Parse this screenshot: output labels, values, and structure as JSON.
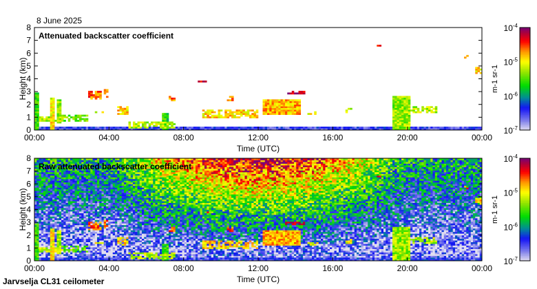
{
  "chart_data": [
    {
      "type": "heatmap",
      "date": "8 June 2025",
      "title": "Attenuated backscatter coefficient",
      "xlabel": "Time (UTC)",
      "ylabel": "Height (km)",
      "xlim_hours": [
        0,
        24
      ],
      "ylim_km": [
        0,
        8
      ],
      "xticks": [
        "00:00",
        "04:00",
        "08:00",
        "12:00",
        "16:00",
        "20:00",
        "00:00"
      ],
      "yticks": [
        "0",
        "1",
        "2",
        "3",
        "4",
        "5",
        "6",
        "7",
        "8"
      ],
      "colorbar": {
        "label": "m-1 sr-1",
        "scale": "log",
        "range_log10": [
          -7,
          -4
        ],
        "ticks": [
          {
            "base": "10",
            "exp": "-7"
          },
          {
            "base": "10",
            "exp": "-6"
          },
          {
            "base": "10",
            "exp": "-5"
          },
          {
            "base": "10",
            "exp": "-4"
          }
        ]
      },
      "features": [
        {
          "t0": 0.0,
          "t1": 0.3,
          "h0": 0.0,
          "h1": 2.9,
          "log10": -5.6
        },
        {
          "t0": 0.3,
          "t1": 1.5,
          "h0": 0.7,
          "h1": 1.0,
          "log10": -5.2
        },
        {
          "t0": 0.8,
          "t1": 1.1,
          "h0": 0.0,
          "h1": 2.5,
          "log10": -5.0
        },
        {
          "t0": 1.2,
          "t1": 1.4,
          "h0": 0.6,
          "h1": 2.4,
          "log10": -5.3
        },
        {
          "t0": 1.5,
          "t1": 2.9,
          "h0": 0.7,
          "h1": 1.2,
          "log10": -5.4
        },
        {
          "t0": 2.9,
          "t1": 3.6,
          "h0": 2.4,
          "h1": 3.0,
          "log10": -4.6
        },
        {
          "t0": 3.7,
          "t1": 4.0,
          "h0": 2.6,
          "h1": 3.2,
          "log10": -4.6
        },
        {
          "t0": 3.3,
          "t1": 3.7,
          "h0": 1.3,
          "h1": 1.5,
          "log10": -5.1
        },
        {
          "t0": 4.5,
          "t1": 5.0,
          "h0": 1.2,
          "h1": 1.9,
          "log10": -4.9
        },
        {
          "t0": 5.0,
          "t1": 7.6,
          "h0": 0.1,
          "h1": 0.6,
          "log10": -5.2
        },
        {
          "t0": 6.8,
          "t1": 7.2,
          "h0": 0.0,
          "h1": 1.3,
          "log10": -5.6
        },
        {
          "t0": 7.2,
          "t1": 7.6,
          "h0": 2.3,
          "h1": 2.6,
          "log10": -4.6
        },
        {
          "t0": 8.8,
          "t1": 9.3,
          "h0": 3.7,
          "h1": 3.9,
          "log10": -4.2
        },
        {
          "t0": 9.0,
          "t1": 12.0,
          "h0": 1.0,
          "h1": 1.6,
          "log10": -4.9
        },
        {
          "t0": 10.3,
          "t1": 10.7,
          "h0": 2.3,
          "h1": 2.7,
          "log10": -4.6
        },
        {
          "t0": 12.2,
          "t1": 14.3,
          "h0": 1.2,
          "h1": 2.4,
          "log10": -4.8
        },
        {
          "t0": 13.5,
          "t1": 14.5,
          "h0": 2.8,
          "h1": 3.0,
          "log10": -4.2
        },
        {
          "t0": 14.6,
          "t1": 15.2,
          "h0": 1.2,
          "h1": 1.5,
          "log10": -5.0
        },
        {
          "t0": 16.7,
          "t1": 17.0,
          "h0": 1.3,
          "h1": 1.7,
          "log10": -5.1
        },
        {
          "t0": 18.4,
          "t1": 18.6,
          "h0": 6.5,
          "h1": 6.7,
          "log10": -4.4
        },
        {
          "t0": 19.2,
          "t1": 20.1,
          "h0": 0.0,
          "h1": 2.6,
          "log10": -5.3
        },
        {
          "t0": 20.1,
          "t1": 21.6,
          "h0": 1.3,
          "h1": 1.8,
          "log10": -5.2
        },
        {
          "t0": 23.1,
          "t1": 23.3,
          "h0": 5.6,
          "h1": 5.9,
          "log10": -4.6
        },
        {
          "t0": 23.7,
          "t1": 24.0,
          "h0": 4.4,
          "h1": 4.9,
          "log10": -4.9
        },
        {
          "t0": 0.0,
          "t1": 24.0,
          "h0": 0.0,
          "h1": 0.3,
          "log10": -6.5
        }
      ]
    },
    {
      "type": "heatmap",
      "title": "Raw attenuated backscatter coefficient",
      "xlabel": "Time (UTC)",
      "ylabel": "Height (km)",
      "xlim_hours": [
        0,
        24
      ],
      "ylim_km": [
        0,
        8
      ],
      "xticks": [
        "00:00",
        "04:00",
        "08:00",
        "12:00",
        "16:00",
        "20:00",
        "00:00"
      ],
      "yticks": [
        "0",
        "1",
        "2",
        "3",
        "4",
        "5",
        "6",
        "7",
        "8"
      ],
      "colorbar": {
        "label": "m-1 sr-1",
        "scale": "log",
        "range_log10": [
          -7,
          -4
        ],
        "ticks": [
          {
            "base": "10",
            "exp": "-7"
          },
          {
            "base": "10",
            "exp": "-6"
          },
          {
            "base": "10",
            "exp": "-5"
          },
          {
            "base": "10",
            "exp": "-4"
          }
        ]
      },
      "noise_note": "noise increases with height, strongest around 12:00"
    }
  ],
  "footer": "Jarvselja CL31 ceilometer"
}
